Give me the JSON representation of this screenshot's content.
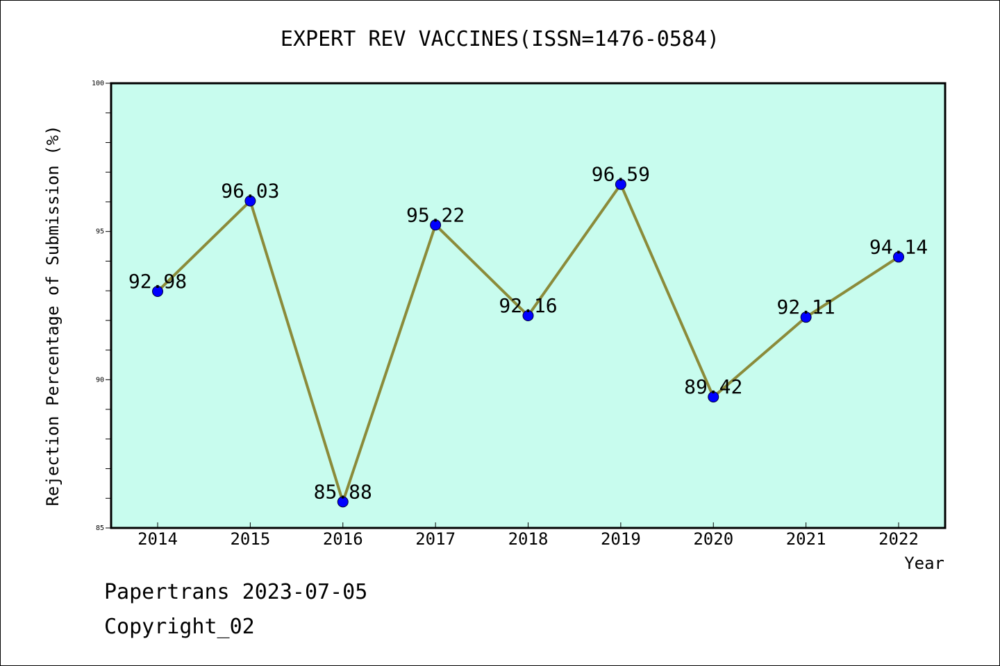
{
  "chart_data": {
    "type": "line",
    "title": "EXPERT REV VACCINES(ISSN=1476-0584)",
    "xlabel": "Year",
    "ylabel": "Rejection Percentage of Submission (%)",
    "categories": [
      "2014",
      "2015",
      "2016",
      "2017",
      "2018",
      "2019",
      "2020",
      "2021",
      "2022"
    ],
    "series": [
      {
        "values": [
          92.98,
          96.03,
          85.88,
          95.22,
          92.16,
          96.59,
          89.42,
          92.11,
          94.14
        ],
        "labels": [
          "92.98",
          "96.03",
          "85.88",
          "95.22",
          "92.16",
          "96.59",
          "89.42",
          "92.11",
          "94.14"
        ]
      }
    ],
    "ylim": [
      85,
      100
    ],
    "yticks": [
      "85",
      "90",
      "95",
      "100"
    ],
    "grid": false,
    "colors": {
      "plot_background": "#c8fcee",
      "line": "#8b8b3a",
      "marker": "#0000ff"
    }
  },
  "footer": {
    "line1": "Papertrans 2023-07-05",
    "line2": "Copyright_02"
  }
}
